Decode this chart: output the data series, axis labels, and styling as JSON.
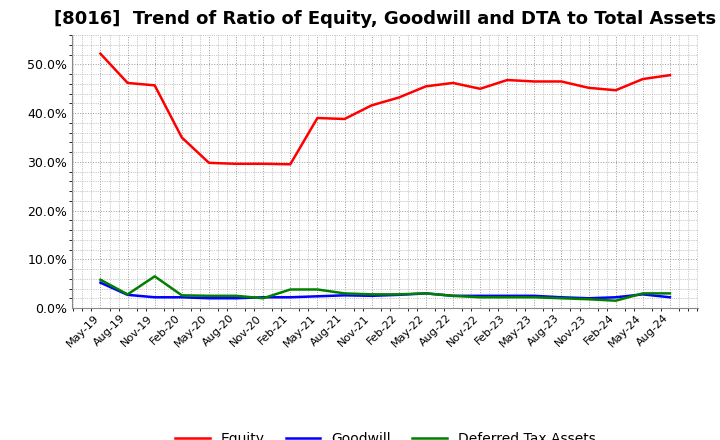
{
  "title": "[8016]  Trend of Ratio of Equity, Goodwill and DTA to Total Assets",
  "x_labels": [
    "May-19",
    "Aug-19",
    "Nov-19",
    "Feb-20",
    "May-20",
    "Aug-20",
    "Nov-20",
    "Feb-21",
    "May-21",
    "Aug-21",
    "Nov-21",
    "Feb-22",
    "May-22",
    "Aug-22",
    "Nov-22",
    "Feb-23",
    "May-23",
    "Aug-23",
    "Nov-23",
    "Feb-24",
    "May-24",
    "Aug-24"
  ],
  "equity": [
    0.522,
    0.462,
    0.457,
    0.35,
    0.298,
    0.296,
    0.296,
    0.295,
    0.39,
    0.388,
    0.416,
    0.432,
    0.455,
    0.462,
    0.45,
    0.468,
    0.465,
    0.465,
    0.452,
    0.447,
    0.47,
    0.478
  ],
  "goodwill": [
    0.052,
    0.027,
    0.022,
    0.022,
    0.02,
    0.02,
    0.022,
    0.022,
    0.024,
    0.026,
    0.025,
    0.027,
    0.03,
    0.025,
    0.025,
    0.025,
    0.025,
    0.022,
    0.02,
    0.022,
    0.028,
    0.022
  ],
  "dta": [
    0.058,
    0.028,
    0.065,
    0.026,
    0.025,
    0.025,
    0.02,
    0.038,
    0.038,
    0.03,
    0.028,
    0.028,
    0.03,
    0.025,
    0.022,
    0.022,
    0.022,
    0.02,
    0.018,
    0.015,
    0.03,
    0.03
  ],
  "equity_color": "#FF0000",
  "goodwill_color": "#0000FF",
  "dta_color": "#008000",
  "ylim": [
    0.0,
    0.56
  ],
  "yticks": [
    0.0,
    0.1,
    0.2,
    0.3,
    0.4,
    0.5
  ],
  "background_color": "#FFFFFF",
  "plot_bg_color": "#FFFFFF",
  "grid_color": "#999999",
  "title_fontsize": 13,
  "legend_labels": [
    "Equity",
    "Goodwill",
    "Deferred Tax Assets"
  ]
}
